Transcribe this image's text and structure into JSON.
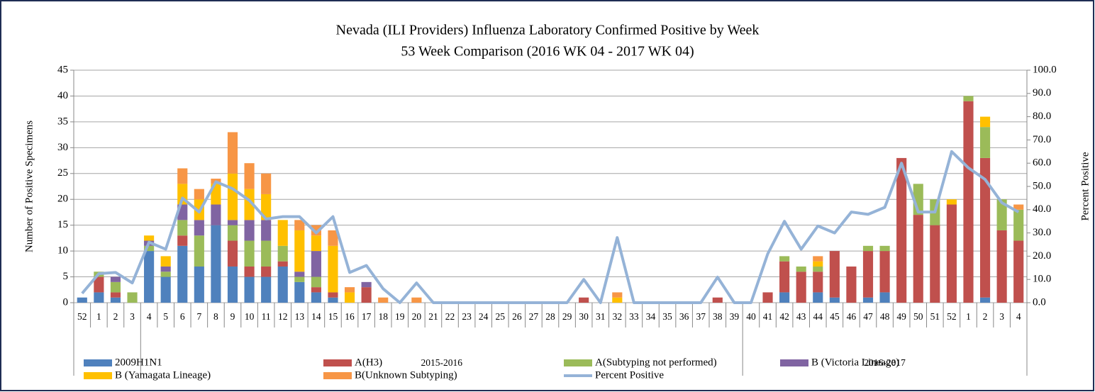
{
  "chart_data": {
    "type": "bar",
    "stacked": true,
    "title": "Nevada (ILI Providers) Influenza Laboratory Confirmed Positive by Week",
    "subtitle": "53 Week Comparison (2016 WK 04 - 2017 WK 04)",
    "y_label": "Number of Positive Specimens",
    "y2_label": "Percent Positive",
    "categories": [
      "52",
      "1",
      "2",
      "3",
      "4",
      "5",
      "6",
      "7",
      "8",
      "9",
      "10",
      "11",
      "12",
      "13",
      "14",
      "15",
      "16",
      "17",
      "18",
      "19",
      "20",
      "21",
      "22",
      "23",
      "24",
      "25",
      "26",
      "27",
      "28",
      "29",
      "30",
      "31",
      "32",
      "33",
      "34",
      "35",
      "36",
      "37",
      "38",
      "39",
      "40",
      "41",
      "42",
      "43",
      "44",
      "45",
      "46",
      "47",
      "48",
      "49",
      "50",
      "51",
      "52",
      "1",
      "2",
      "3",
      "4"
    ],
    "x_groups": [
      null,
      null,
      null,
      null,
      "2015-2016",
      "2015-2016",
      "2015-2016",
      "2015-2016",
      "2015-2016",
      "2015-2016",
      "2015-2016",
      "2015-2016",
      "2015-2016",
      "2015-2016",
      "2015-2016",
      "2015-2016",
      "2015-2016",
      "2015-2016",
      "2015-2016",
      "2015-2016",
      "2015-2016",
      "2015-2016",
      "2015-2016",
      "2015-2016",
      "2015-2016",
      "2015-2016",
      "2015-2016",
      "2015-2016",
      "2015-2016",
      "2015-2016",
      "2015-2016",
      "2015-2016",
      "2015-2016",
      "2015-2016",
      "2015-2016",
      "2015-2016",
      "2015-2016",
      "2015-2016",
      "2015-2016",
      "2015-2016",
      "2016-2017",
      "2016-2017",
      "2016-2017",
      "2016-2017",
      "2016-2017",
      "2016-2017",
      "2016-2017",
      "2016-2017",
      "2016-2017",
      "2016-2017",
      "2016-2017",
      "2016-2017",
      "2016-2017",
      "2016-2017",
      "2016-2017",
      "2016-2017",
      "2016-2017"
    ],
    "series": [
      {
        "name": "2009H1N1",
        "type": "bar",
        "color": "#4f81bd",
        "values": [
          1,
          2,
          1,
          0,
          10,
          5,
          11,
          7,
          15,
          7,
          5,
          5,
          7,
          4,
          2,
          1,
          0,
          0,
          0,
          0,
          0,
          0,
          0,
          0,
          0,
          0,
          0,
          0,
          0,
          0,
          0,
          0,
          0,
          0,
          0,
          0,
          0,
          0,
          0,
          0,
          0,
          0,
          2,
          0,
          2,
          1,
          0,
          1,
          2,
          0,
          0,
          0,
          0,
          0,
          1,
          0,
          0
        ]
      },
      {
        "name": "A(H3)",
        "type": "bar",
        "color": "#c0504d",
        "values": [
          0,
          3,
          1,
          0,
          0,
          0,
          2,
          0,
          0,
          5,
          2,
          2,
          1,
          0,
          1,
          1,
          0,
          3,
          0,
          0,
          0,
          0,
          0,
          0,
          0,
          0,
          0,
          0,
          0,
          0,
          1,
          0,
          0,
          0,
          0,
          0,
          0,
          0,
          1,
          0,
          0,
          2,
          6,
          6,
          4,
          9,
          7,
          9,
          8,
          28,
          17,
          15,
          19,
          39,
          27,
          14,
          12
        ]
      },
      {
        "name": "A(Subtyping not performed)",
        "type": "bar",
        "color": "#9bbb59",
        "values": [
          0,
          1,
          2,
          2,
          1,
          1,
          3,
          6,
          0,
          3,
          5,
          5,
          3,
          1,
          2,
          0,
          0,
          0,
          0,
          0,
          0,
          0,
          0,
          0,
          0,
          0,
          0,
          0,
          0,
          0,
          0,
          0,
          0,
          0,
          0,
          0,
          0,
          0,
          0,
          0,
          0,
          0,
          1,
          1,
          1,
          0,
          0,
          1,
          1,
          0,
          6,
          5,
          0,
          1,
          6,
          6,
          6
        ]
      },
      {
        "name": "B (Victoria Lineage)",
        "type": "bar",
        "color": "#8064a2",
        "values": [
          0,
          0,
          1,
          0,
          1,
          1,
          3,
          3,
          4,
          1,
          4,
          4,
          0,
          1,
          5,
          0,
          0,
          1,
          0,
          0,
          0,
          0,
          0,
          0,
          0,
          0,
          0,
          0,
          0,
          0,
          0,
          0,
          0,
          0,
          0,
          0,
          0,
          0,
          0,
          0,
          0,
          0,
          0,
          0,
          0,
          0,
          0,
          0,
          0,
          0,
          0,
          0,
          0,
          0,
          0,
          0,
          0
        ]
      },
      {
        "name": "B (Yamagata Lineage)",
        "type": "bar",
        "color": "#ffc000",
        "values": [
          0,
          0,
          0,
          0,
          1,
          2,
          4,
          4,
          4,
          9,
          6,
          5,
          5,
          8,
          3,
          9,
          2,
          0,
          0,
          0,
          0,
          0,
          0,
          0,
          0,
          0,
          0,
          0,
          0,
          0,
          0,
          0,
          1,
          0,
          0,
          0,
          0,
          0,
          0,
          0,
          0,
          0,
          0,
          0,
          1,
          0,
          0,
          0,
          0,
          0,
          0,
          0,
          1,
          0,
          2,
          0,
          0
        ]
      },
      {
        "name": "B(Unknown Subtyping)",
        "type": "bar",
        "color": "#f79646",
        "values": [
          0,
          0,
          0,
          0,
          0,
          0,
          3,
          2,
          1,
          8,
          5,
          4,
          0,
          2,
          2,
          3,
          1,
          0,
          1,
          0,
          1,
          0,
          0,
          0,
          0,
          0,
          0,
          0,
          0,
          0,
          0,
          0,
          1,
          0,
          0,
          0,
          0,
          0,
          0,
          0,
          0,
          0,
          0,
          0,
          1,
          0,
          0,
          0,
          0,
          0,
          0,
          0,
          0,
          0,
          0,
          0,
          1
        ]
      },
      {
        "name": "Percent Positive",
        "type": "line",
        "axis": "y2",
        "color": "#95b3d7",
        "values": [
          4,
          12.5,
          13,
          8.5,
          26,
          23,
          45,
          39,
          52,
          49,
          44,
          36,
          37,
          37,
          30,
          37,
          13,
          16,
          6,
          0,
          8.5,
          0,
          0,
          0,
          0,
          0,
          0,
          0,
          0,
          0,
          10,
          0,
          28,
          0,
          0,
          0,
          0,
          0,
          11,
          0,
          0,
          21,
          35,
          23,
          33,
          30,
          39,
          38,
          41,
          60,
          39,
          39,
          65,
          58,
          53,
          43,
          39
        ]
      }
    ],
    "ylim": [
      0,
      45
    ],
    "yticks": [
      0,
      5,
      10,
      15,
      20,
      25,
      30,
      35,
      40,
      45
    ],
    "y2lim": [
      0,
      100
    ],
    "y2ticks": [
      {
        "value": 0,
        "label": "0.0"
      },
      {
        "value": 10,
        "label": "10.0"
      },
      {
        "value": 20,
        "label": "20.0"
      },
      {
        "value": 30,
        "label": "30.0"
      },
      {
        "value": 40,
        "label": "40.0"
      },
      {
        "value": 50,
        "label": "50.0"
      },
      {
        "value": 60,
        "label": "60.0"
      },
      {
        "value": 70,
        "label": "70.0"
      },
      {
        "value": 80,
        "label": "80.0"
      },
      {
        "value": 90,
        "label": "90.0"
      },
      {
        "value": 100,
        "label": "100.0"
      }
    ],
    "grid": true,
    "legend": "bottom"
  }
}
